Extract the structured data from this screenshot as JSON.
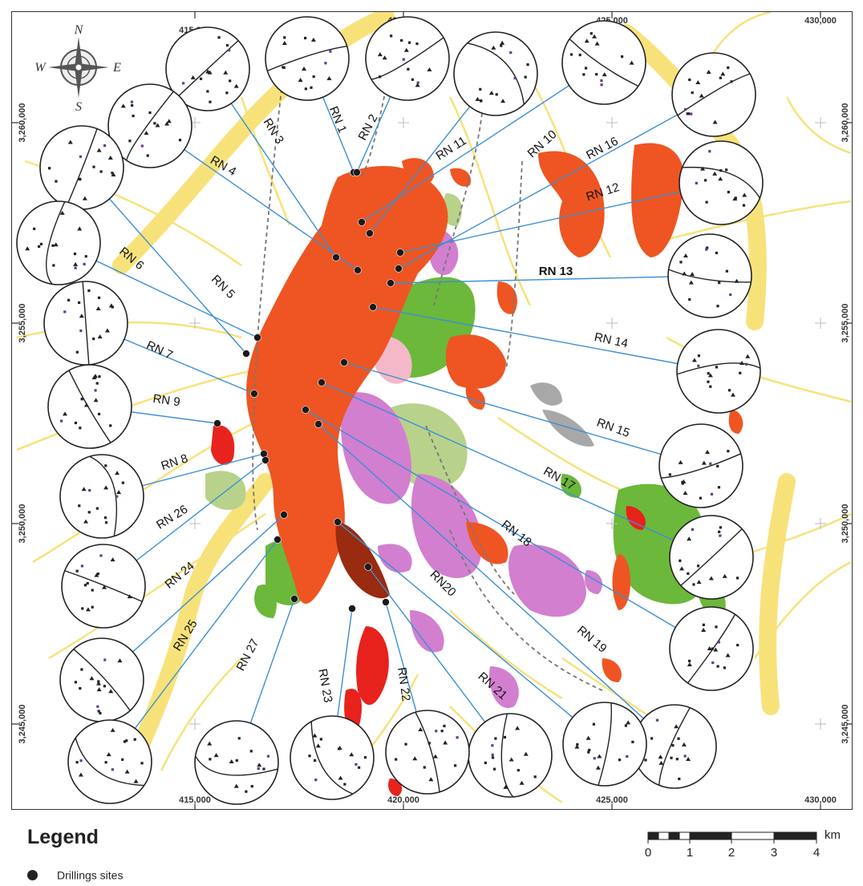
{
  "map": {
    "north_arrow": {
      "n": "N",
      "e": "E",
      "s": "S",
      "w": "W"
    },
    "coords": {
      "top": [
        "415,000",
        "420,000",
        "425,000",
        "430,000"
      ],
      "bottom": [
        "415,000",
        "420,000",
        "425,000",
        "430,000"
      ],
      "left": [
        "3,260,000",
        "3,255,000",
        "3,250,000",
        "3,245,000"
      ],
      "right": [
        "3,260,000",
        "3,255,000",
        "3,250,000",
        "3,245,000"
      ]
    },
    "sites": [
      "RN 1",
      "RN 2",
      "RN 3",
      "RN 4",
      "RN 5",
      "RN 6",
      "RN 7",
      "RN 8",
      "RN 9",
      "RN 10",
      "RN 11",
      "RN 12",
      "RN 13",
      "RN 14",
      "RN 15",
      "RN 16",
      "RN 17",
      "RN 18",
      "RN 19",
      "RN20",
      "RN 21",
      "RN 22",
      "RN 23",
      "RN 24",
      "RN 25",
      "RN 26",
      "RN 27"
    ],
    "colors": {
      "drainage": "#f7e27a",
      "volcanic_orange": "#ee5522",
      "green_unit": "#6cb83a",
      "pale_green_unit": "#b8d28c",
      "pink_unit": "#d27fcf",
      "light_pink_unit": "#f4b8c8",
      "grey_unit": "#a8a8a8",
      "red_unit": "#e8221c",
      "brown_unit": "#9a2a10",
      "leader_line": "#3a8fd6"
    }
  },
  "legend": {
    "title": "Legend",
    "drilling_sites": "Drillings sites"
  },
  "scale": {
    "labels": [
      "0",
      "1",
      "2",
      "3",
      "4"
    ],
    "unit": "km"
  }
}
